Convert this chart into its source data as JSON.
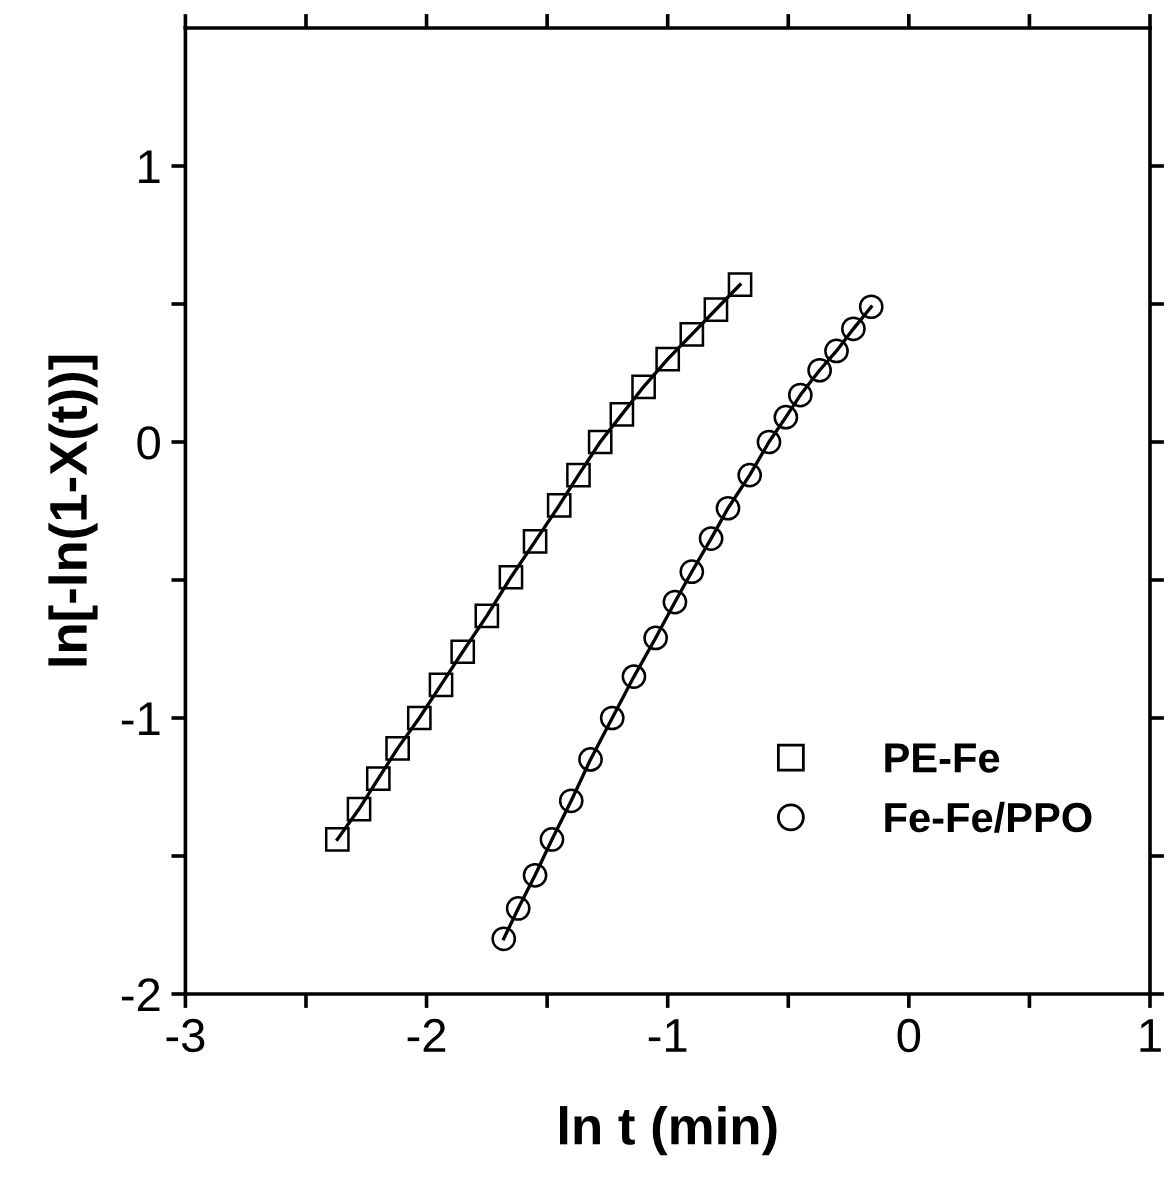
{
  "chart_data": {
    "type": "line",
    "xlabel": "ln t (min)",
    "ylabel": "ln[-ln(1-X(t))]",
    "xlim": [
      -3,
      1
    ],
    "ylim": [
      -2,
      1.5
    ],
    "xticks": [
      -3,
      {
        "value": -2.5,
        "label": null
      },
      -2,
      {
        "value": -1.5,
        "label": null
      },
      -1,
      {
        "value": -0.5,
        "label": null
      },
      0,
      {
        "value": 0.5,
        "label": null
      },
      1
    ],
    "yticks": [
      -2,
      {
        "value": -1.5,
        "label": null
      },
      -1,
      {
        "value": -0.5,
        "label": null
      },
      0,
      {
        "value": 0.5,
        "label": null
      },
      1
    ],
    "grid": false,
    "legend": "bottom right",
    "line_style": "solid",
    "series": [
      {
        "name": "PE-Fe",
        "color": "#000000",
        "marker": "square",
        "x": [
          -2.37,
          -2.28,
          -2.2,
          -2.12,
          -2.03,
          -1.94,
          -1.85,
          -1.75,
          -1.65,
          -1.55,
          -1.45,
          -1.37,
          -1.28,
          -1.19,
          -1.1,
          -1.0,
          -0.9,
          -0.8,
          -0.7
        ],
        "values": [
          -1.44,
          -1.33,
          -1.22,
          -1.11,
          -1.0,
          -0.88,
          -0.76,
          -0.63,
          -0.49,
          -0.36,
          -0.23,
          -0.12,
          0.0,
          0.1,
          0.2,
          0.3,
          0.39,
          0.48,
          0.57
        ]
      },
      {
        "name": "Fe-Fe/PPO",
        "color": "#000000",
        "marker": "circle",
        "x": [
          -1.68,
          -1.62,
          -1.55,
          -1.48,
          -1.4,
          -1.32,
          -1.23,
          -1.14,
          -1.05,
          -0.97,
          -0.9,
          -0.82,
          -0.75,
          -0.66,
          -0.58,
          -0.51,
          -0.45,
          -0.37,
          -0.3,
          -0.23,
          -0.156
        ],
        "values": [
          -1.8,
          -1.69,
          -1.57,
          -1.44,
          -1.3,
          -1.15,
          -1.0,
          -0.85,
          -0.71,
          -0.58,
          -0.47,
          -0.35,
          -0.24,
          -0.12,
          0.0,
          0.09,
          0.17,
          0.26,
          0.33,
          0.41,
          0.49
        ]
      }
    ]
  }
}
